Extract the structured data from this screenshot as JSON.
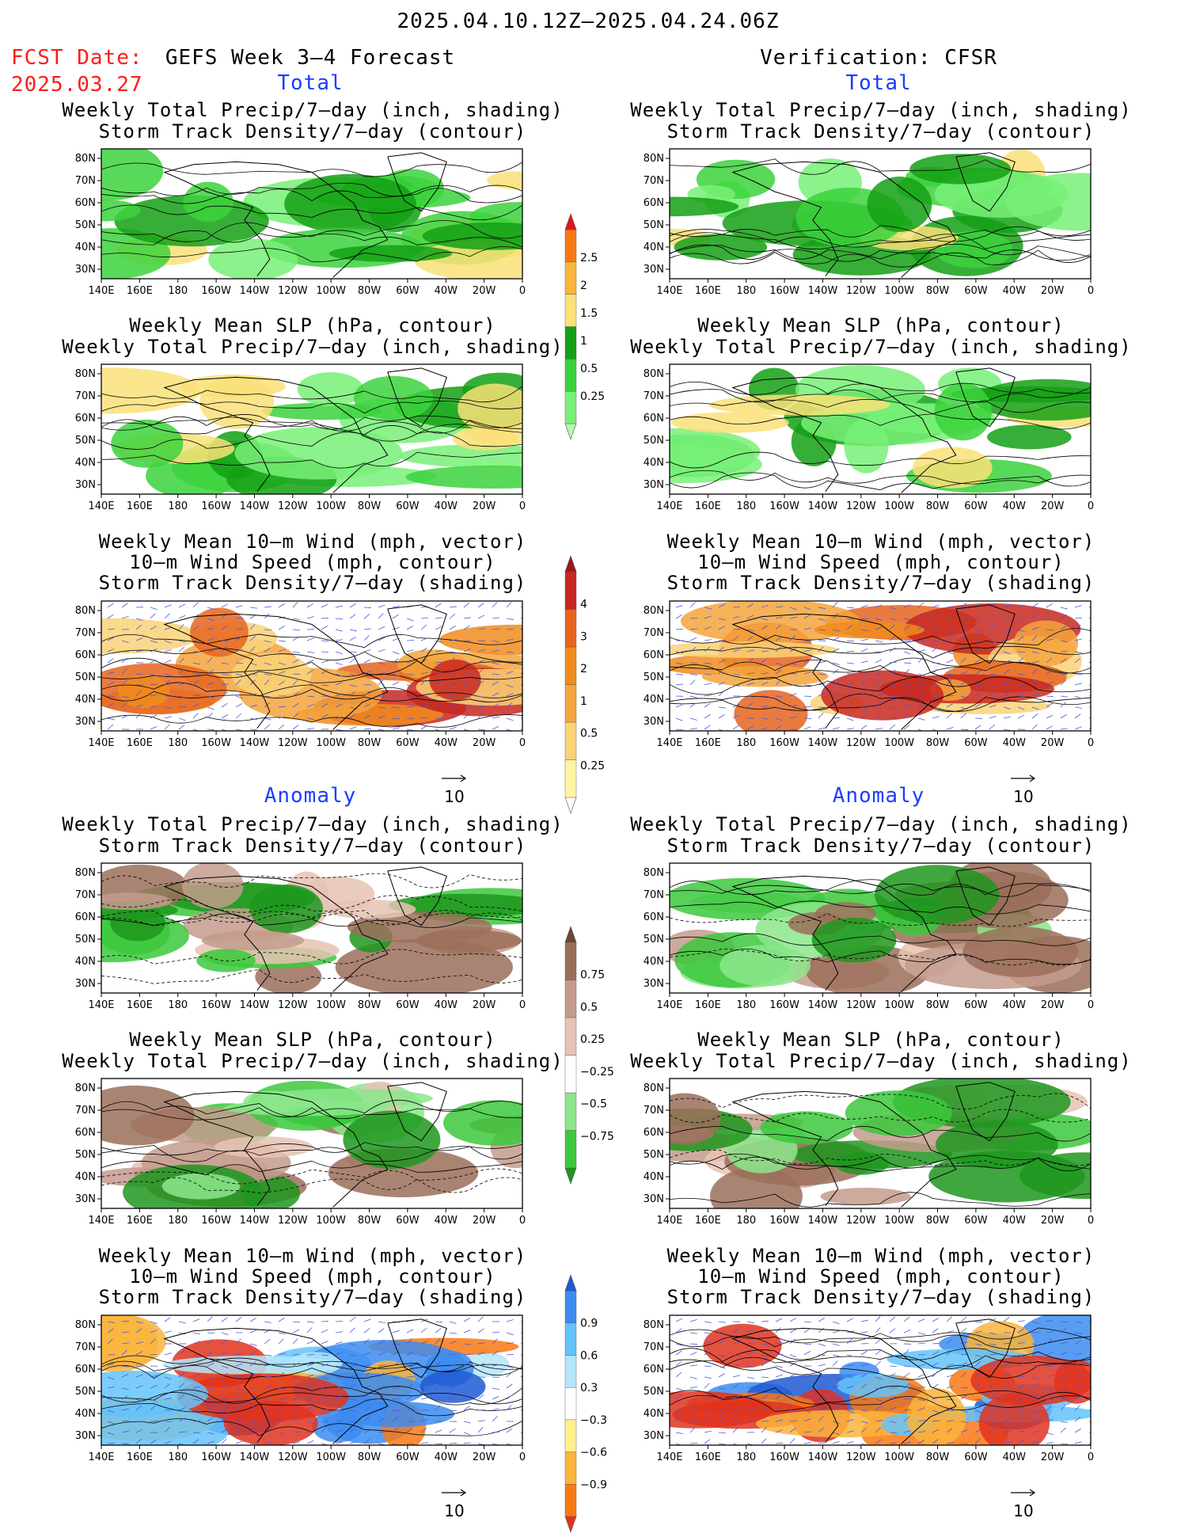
{
  "header": {
    "period": "2025.04.10.12Z–2025.04.24.06Z",
    "fcst_label": "FCST Date:",
    "fcst_date": "2025.03.27",
    "left_title": "GEFS Week 3–4 Forecast",
    "right_title": "Verification: CFSR"
  },
  "sections": {
    "total": "Total",
    "anomaly": "Anomaly"
  },
  "panel_titles": {
    "precip_storm": [
      "Weekly Total Precip/7–day (inch, shading)",
      "Storm Track Density/7–day (contour)"
    ],
    "slp_precip": [
      "Weekly Mean SLP (hPa, contour)",
      "Weekly Total Precip/7–day (inch, shading)"
    ],
    "wind_storm": [
      "Weekly Mean 10–m Wind (mph, vector)",
      "10–m Wind Speed (mph, contour)",
      "Storm Track Density/7–day (shading)"
    ]
  },
  "axes": {
    "lat_ticks": [
      "80N",
      "70N",
      "60N",
      "50N",
      "40N",
      "30N"
    ],
    "lon_ticks": [
      "140E",
      "160E",
      "180",
      "160W",
      "140W",
      "120W",
      "100W",
      "80W",
      "60W",
      "40W",
      "20W",
      "0"
    ]
  },
  "vector_reference": "10",
  "colorbars": {
    "precip_total": {
      "levels": [
        "0.25",
        "0.5",
        "1",
        "1.5",
        "2",
        "2.5"
      ],
      "colors": [
        "#b4fab4",
        "#78f078",
        "#3cd23c",
        "#14a014",
        "#fae178",
        "#fab43c",
        "#fa7814",
        "#e11414"
      ]
    },
    "storm_total": {
      "levels": [
        "0.25",
        "0.5",
        "1",
        "2",
        "3",
        "4"
      ],
      "colors": [
        "#ffffff",
        "#fff5a0",
        "#fad278",
        "#f5a53c",
        "#f08c1e",
        "#e6641e",
        "#c8281e",
        "#a0141e"
      ]
    },
    "precip_anom": {
      "levels": [
        "0.75",
        "0.5",
        "0.25",
        "−0.25",
        "−0.5",
        "−0.75"
      ],
      "colors": [
        "#1e961e",
        "#3cc83c",
        "#8ce68c",
        "#ffffff",
        "#e6c3b4",
        "#c39b8c",
        "#9b6e5a",
        "#6e4632"
      ]
    },
    "storm_anom": {
      "levels": [
        "0.9",
        "0.6",
        "0.3",
        "−0.3",
        "−0.6",
        "−0.9"
      ],
      "colors": [
        "#e1321e",
        "#fa7814",
        "#fab43c",
        "#fff08c",
        "#ffffff",
        "#b4e6fa",
        "#64c3fa",
        "#3c8cf0",
        "#1e5ad2"
      ]
    }
  }
}
